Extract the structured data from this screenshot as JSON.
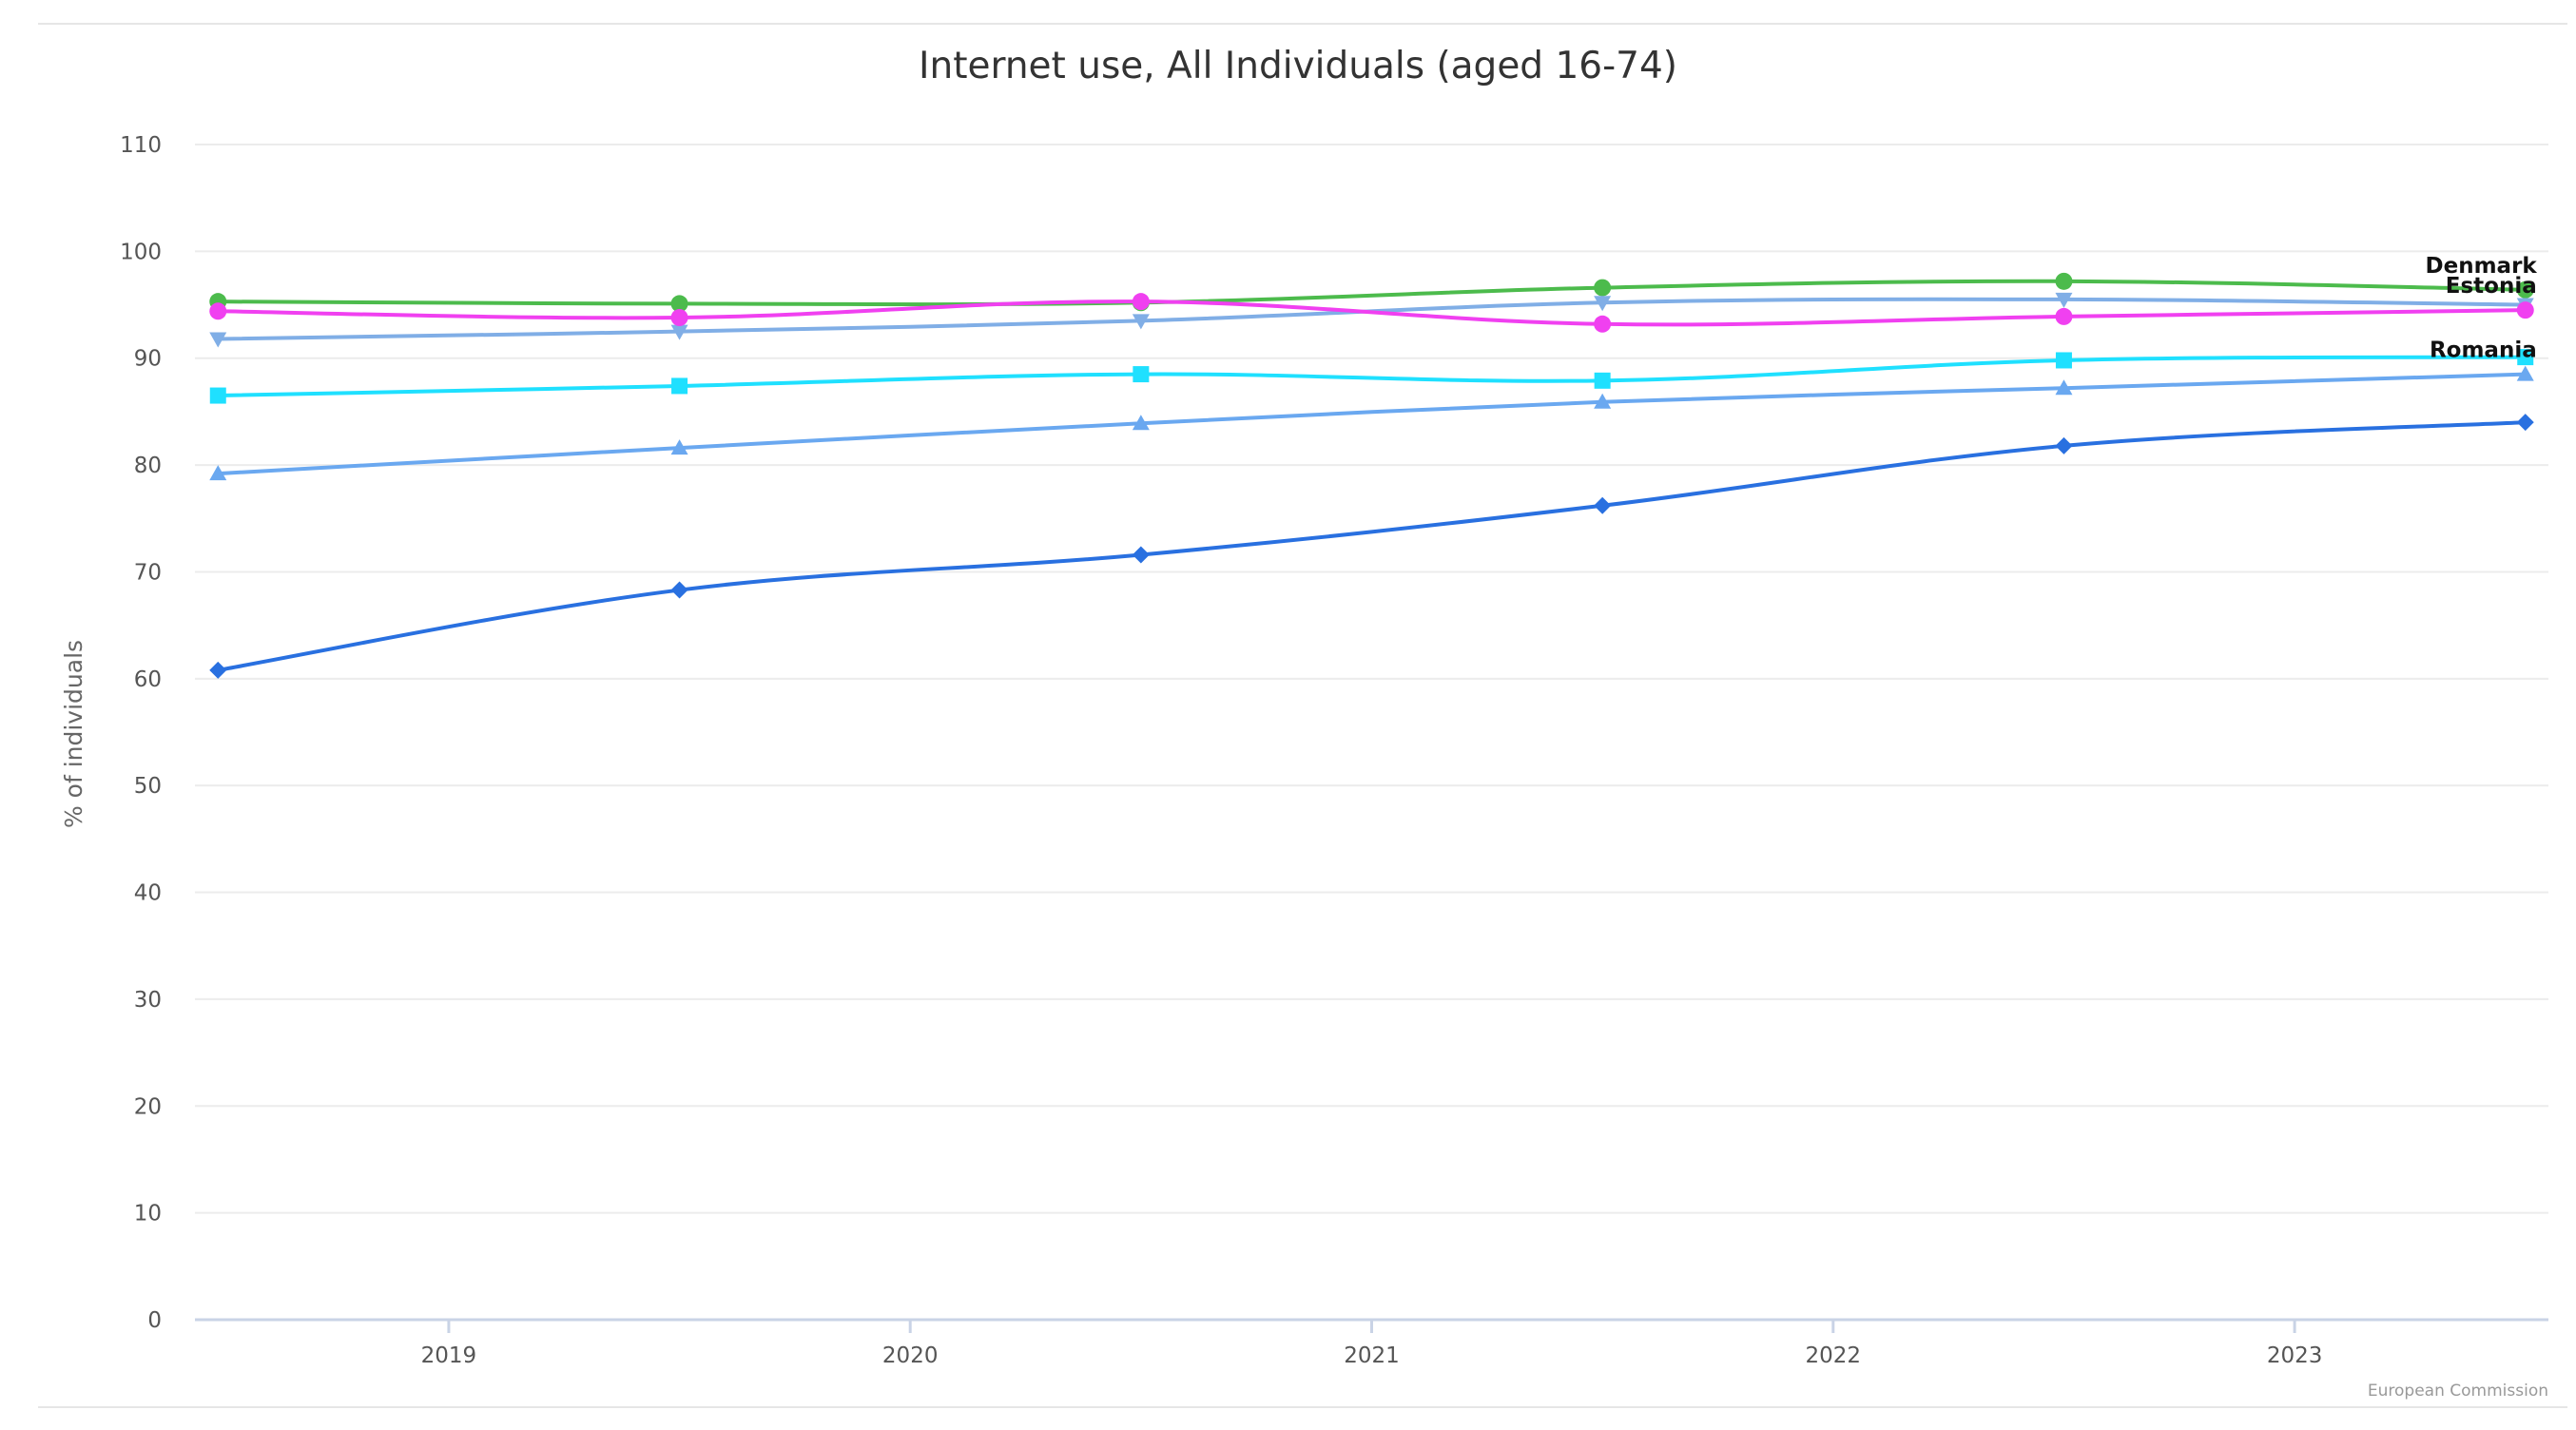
{
  "chart_data": {
    "type": "line",
    "title": "Internet use, All Individuals (aged 16-74)",
    "ylabel": "% of individuals",
    "xlabel": "",
    "ylim": [
      0,
      110
    ],
    "yticks": [
      0,
      10,
      20,
      30,
      40,
      50,
      60,
      70,
      80,
      90,
      100,
      110
    ],
    "xlim": [
      2018.45,
      2023.55
    ],
    "xticks": [
      2019,
      2020,
      2021,
      2022,
      2023
    ],
    "x": [
      2018.5,
      2019.5,
      2020.5,
      2021.5,
      2022.5,
      2023.5
    ],
    "grid": true,
    "legend": "none",
    "credits": "European Commission",
    "series": [
      {
        "name": "Denmark",
        "color": "#4cbb4c",
        "marker": "circle",
        "values": [
          95.3,
          95.1,
          95.2,
          96.6,
          97.2,
          96.4
        ]
      },
      {
        "name": "",
        "color": "#80aee6",
        "marker": "triangle-down",
        "values": [
          91.8,
          92.5,
          93.5,
          95.2,
          95.5,
          95.0
        ]
      },
      {
        "name": "Estonia",
        "color": "#f040f0",
        "marker": "circle",
        "values": [
          94.4,
          93.8,
          95.3,
          93.2,
          93.9,
          94.5
        ]
      },
      {
        "name": "",
        "color": "#1fe0ff",
        "marker": "square",
        "values": [
          86.5,
          87.4,
          88.5,
          87.9,
          89.8,
          90.1
        ]
      },
      {
        "name": "Romania",
        "color": "#6aa8f0",
        "marker": "triangle-up",
        "values": [
          79.2,
          81.6,
          83.9,
          85.9,
          87.2,
          88.5
        ]
      },
      {
        "name": "",
        "color": "#2970e0",
        "marker": "diamond",
        "values": [
          60.8,
          68.3,
          71.6,
          76.2,
          81.8,
          84.0
        ]
      }
    ]
  }
}
